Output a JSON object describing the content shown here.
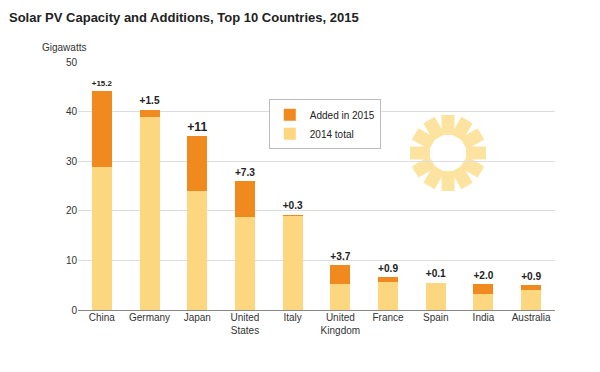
{
  "chart_data": {
    "type": "bar",
    "title": "Solar PV Capacity and Additions, Top 10 Countries, 2015",
    "ylabel": "Gigawatts",
    "categories": [
      "China",
      "Germany",
      "Japan",
      "United States",
      "Italy",
      "United Kingdom",
      "France",
      "Spain",
      "India",
      "Australia"
    ],
    "series": [
      {
        "name": "2014 total",
        "color": "#fdd680",
        "values": [
          28.9,
          38.9,
          24.0,
          18.7,
          18.9,
          5.3,
          5.7,
          5.4,
          3.2,
          4.1
        ]
      },
      {
        "name": "Added in 2015",
        "color": "#f08a1e",
        "values": [
          15.2,
          1.5,
          11,
          7.3,
          0.3,
          3.7,
          0.9,
          0.1,
          2.0,
          0.9
        ],
        "value_labels": [
          "+15.2",
          "+1.5",
          "+11",
          "+7.3",
          "+0.3",
          "+3.7",
          "+0.9",
          "+0.1",
          "+2.0",
          "+0.9"
        ]
      }
    ],
    "ylim": [
      0,
      50
    ],
    "yticks": [
      0,
      10,
      20,
      30,
      40,
      50
    ],
    "grid": true,
    "stacked": true,
    "data_labels": true,
    "legend": "top"
  }
}
